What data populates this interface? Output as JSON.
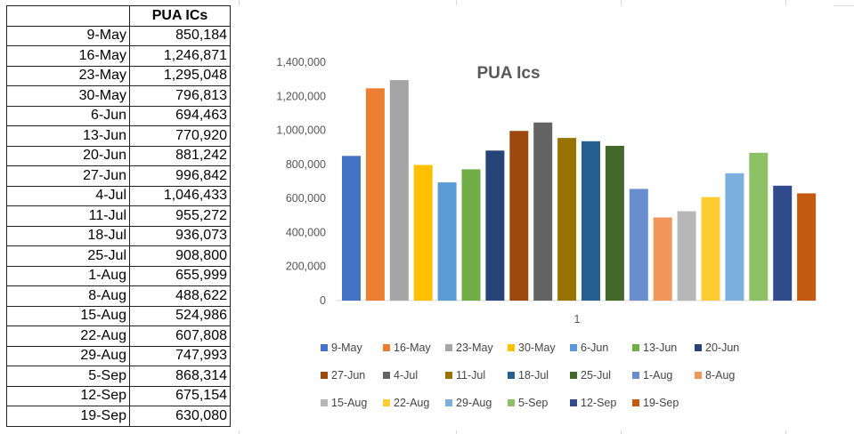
{
  "table": {
    "header": "PUA ICs",
    "rows": [
      {
        "date": "9-May",
        "value": "850,184"
      },
      {
        "date": "16-May",
        "value": "1,246,871"
      },
      {
        "date": "23-May",
        "value": "1,295,048"
      },
      {
        "date": "30-May",
        "value": "796,813"
      },
      {
        "date": "6-Jun",
        "value": "694,463"
      },
      {
        "date": "13-Jun",
        "value": "770,920"
      },
      {
        "date": "20-Jun",
        "value": "881,242"
      },
      {
        "date": "27-Jun",
        "value": "996,842"
      },
      {
        "date": "4-Jul",
        "value": "1,046,433"
      },
      {
        "date": "11-Jul",
        "value": "955,272"
      },
      {
        "date": "18-Jul",
        "value": "936,073"
      },
      {
        "date": "25-Jul",
        "value": "908,800"
      },
      {
        "date": "1-Aug",
        "value": "655,999"
      },
      {
        "date": "8-Aug",
        "value": "488,622"
      },
      {
        "date": "15-Aug",
        "value": "524,986"
      },
      {
        "date": "22-Aug",
        "value": "607,808"
      },
      {
        "date": "29-Aug",
        "value": "747,993"
      },
      {
        "date": "5-Sep",
        "value": "868,314"
      },
      {
        "date": "12-Sep",
        "value": "675,154"
      },
      {
        "date": "19-Sep",
        "value": "630,080"
      }
    ]
  },
  "chart_data": {
    "type": "bar",
    "title": "PUA Ics",
    "categories": [
      "1"
    ],
    "ylim": [
      0,
      1400000
    ],
    "yticks": [
      0,
      200000,
      400000,
      600000,
      800000,
      1000000,
      1200000,
      1400000
    ],
    "ytick_labels": [
      "0",
      "200,000",
      "400,000",
      "600,000",
      "800,000",
      "1,000,000",
      "1,200,000",
      "1,400,000"
    ],
    "grid": false,
    "legend_position": "bottom",
    "series": [
      {
        "name": "9-May",
        "values": [
          850184
        ],
        "color": "#4472c4"
      },
      {
        "name": "16-May",
        "values": [
          1246871
        ],
        "color": "#ed7d31"
      },
      {
        "name": "23-May",
        "values": [
          1295048
        ],
        "color": "#a5a5a5"
      },
      {
        "name": "30-May",
        "values": [
          796813
        ],
        "color": "#ffc000"
      },
      {
        "name": "6-Jun",
        "values": [
          694463
        ],
        "color": "#5b9bd5"
      },
      {
        "name": "13-Jun",
        "values": [
          770920
        ],
        "color": "#70ad47"
      },
      {
        "name": "20-Jun",
        "values": [
          881242
        ],
        "color": "#264478"
      },
      {
        "name": "27-Jun",
        "values": [
          996842
        ],
        "color": "#9e480e"
      },
      {
        "name": "4-Jul",
        "values": [
          1046433
        ],
        "color": "#636363"
      },
      {
        "name": "11-Jul",
        "values": [
          955272
        ],
        "color": "#997300"
      },
      {
        "name": "18-Jul",
        "values": [
          936073
        ],
        "color": "#255e91"
      },
      {
        "name": "25-Jul",
        "values": [
          908800
        ],
        "color": "#43682b"
      },
      {
        "name": "1-Aug",
        "values": [
          655999
        ],
        "color": "#698ed0"
      },
      {
        "name": "8-Aug",
        "values": [
          488622
        ],
        "color": "#f1975a"
      },
      {
        "name": "15-Aug",
        "values": [
          524986
        ],
        "color": "#b7b7b7"
      },
      {
        "name": "22-Aug",
        "values": [
          607808
        ],
        "color": "#ffcd33"
      },
      {
        "name": "29-Aug",
        "values": [
          747993
        ],
        "color": "#7cafdd"
      },
      {
        "name": "5-Sep",
        "values": [
          868314
        ],
        "color": "#8cc168"
      },
      {
        "name": "12-Sep",
        "values": [
          675154
        ],
        "color": "#2f4b8c"
      },
      {
        "name": "19-Sep",
        "values": [
          630080
        ],
        "color": "#c55a11"
      }
    ]
  }
}
